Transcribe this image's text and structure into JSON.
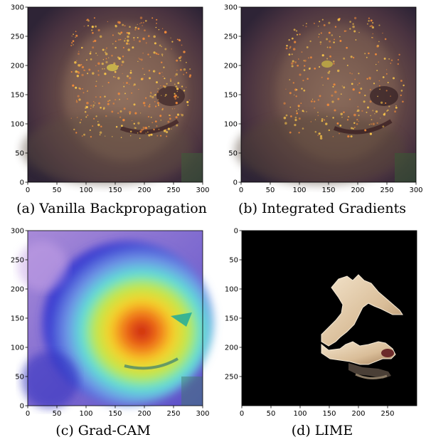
{
  "figure": {
    "panels": [
      {
        "caption": "(a) Vanilla Backpropagation",
        "overlay": "saliency-sparks",
        "x_ticks": [
          "0",
          "50",
          "100",
          "150",
          "200",
          "250",
          "300"
        ],
        "y_ticks": [
          "0",
          "50",
          "100",
          "150",
          "200",
          "250",
          "300"
        ],
        "y_axis_direction": "bottom-to-top"
      },
      {
        "caption": "(b) Integrated Gradients",
        "overlay": "saliency-sparks",
        "x_ticks": [
          "0",
          "50",
          "100",
          "150",
          "200",
          "250",
          "300"
        ],
        "y_ticks": [
          "0",
          "50",
          "100",
          "150",
          "200",
          "250",
          "300"
        ],
        "y_axis_direction": "bottom-to-top"
      },
      {
        "caption": "(c) Grad-CAM",
        "overlay": "jet-heatmap",
        "x_ticks": [
          "0",
          "50",
          "100",
          "150",
          "200",
          "250",
          "300"
        ],
        "y_ticks": [
          "0",
          "50",
          "100",
          "150",
          "200",
          "250",
          "300"
        ],
        "y_axis_direction": "bottom-to-top"
      },
      {
        "caption": "(d) LIME",
        "overlay": "superpixel-mask",
        "x_ticks": [
          "0",
          "50",
          "100",
          "150",
          "200",
          "250"
        ],
        "y_ticks": [
          "0",
          "50",
          "100",
          "150",
          "200",
          "250"
        ],
        "y_axis_direction": "top-to-bottom"
      }
    ]
  }
}
